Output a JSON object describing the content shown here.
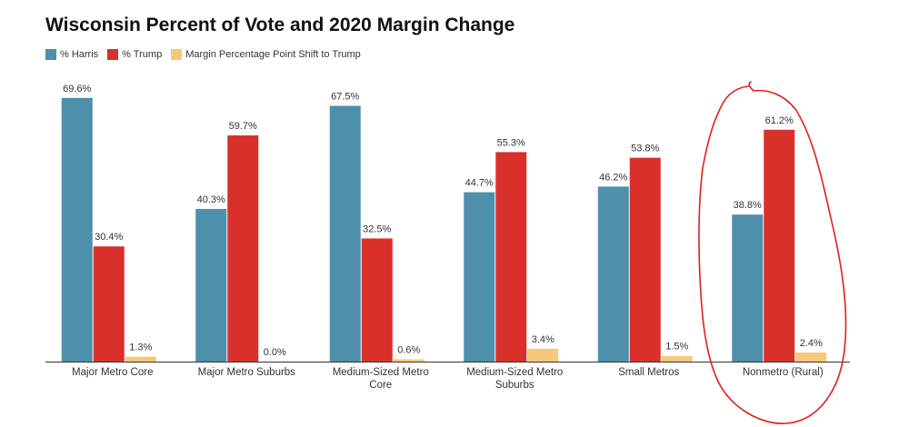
{
  "chart_data": {
    "type": "bar",
    "title": "Wisconsin Percent of Vote and 2020 Margin Change",
    "xlabel": "",
    "ylabel": "",
    "ylim": [
      0,
      75
    ],
    "grid": false,
    "legend_position": "top-left",
    "categories": [
      [
        "Major Metro Core"
      ],
      [
        "Major Metro Suburbs"
      ],
      [
        "Medium-Sized Metro",
        "Core"
      ],
      [
        "Medium-Sized Metro",
        "Suburbs"
      ],
      [
        "Small Metros"
      ],
      [
        "Nonmetro (Rural)"
      ]
    ],
    "series": [
      {
        "name": "% Harris",
        "color": "#4e8fab",
        "values": [
          69.6,
          40.3,
          67.5,
          44.7,
          46.2,
          38.8
        ],
        "labels": [
          "69.6%",
          "40.3%",
          "67.5%",
          "44.7%",
          "46.2%",
          "38.8%"
        ]
      },
      {
        "name": "% Trump",
        "color": "#d9302b",
        "values": [
          30.4,
          59.7,
          32.5,
          55.3,
          53.8,
          61.2
        ],
        "labels": [
          "30.4%",
          "59.7%",
          "32.5%",
          "55.3%",
          "53.8%",
          "61.2%"
        ]
      },
      {
        "name": "Margin Percentage Point Shift to Trump",
        "color": "#f6c97a",
        "values": [
          1.3,
          0.0,
          0.6,
          3.4,
          1.5,
          2.4
        ],
        "labels": [
          "1.3%",
          "0.0%",
          "0.6%",
          "3.4%",
          "1.5%",
          "2.4%"
        ]
      }
    ],
    "annotations": [
      {
        "type": "hand-drawn-circle",
        "target": "Nonmetro (Rural)",
        "color": "#e0201b"
      }
    ]
  }
}
